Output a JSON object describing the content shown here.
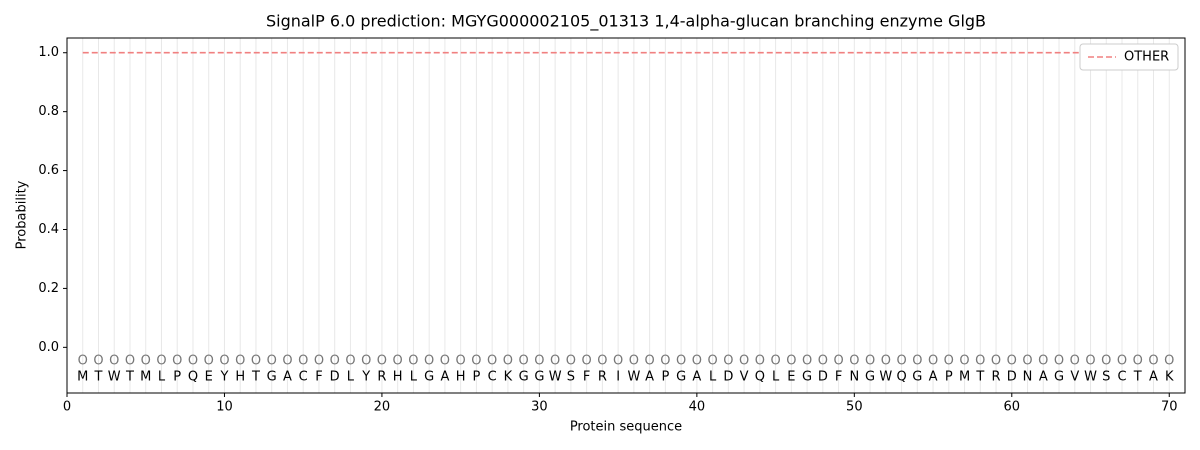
{
  "chart_data": {
    "type": "line",
    "title": "SignalP 6.0 prediction: MGYG000002105_01313 1,4-alpha-glucan branching enzyme GlgB",
    "xlabel": "Protein sequence",
    "ylabel": "Probability",
    "x": [
      1,
      2,
      3,
      4,
      5,
      6,
      7,
      8,
      9,
      10,
      11,
      12,
      13,
      14,
      15,
      16,
      17,
      18,
      19,
      20,
      21,
      22,
      23,
      24,
      25,
      26,
      27,
      28,
      29,
      30,
      31,
      32,
      33,
      34,
      35,
      36,
      37,
      38,
      39,
      40,
      41,
      42,
      43,
      44,
      45,
      46,
      47,
      48,
      49,
      50,
      51,
      52,
      53,
      54,
      55,
      56,
      57,
      58,
      59,
      60,
      61,
      62,
      63,
      64,
      65,
      66,
      67,
      68,
      69,
      70
    ],
    "sequence": [
      "M",
      "T",
      "W",
      "T",
      "M",
      "L",
      "P",
      "Q",
      "E",
      "Y",
      "H",
      "T",
      "G",
      "A",
      "C",
      "F",
      "D",
      "L",
      "Y",
      "R",
      "H",
      "L",
      "G",
      "A",
      "H",
      "P",
      "C",
      "K",
      "G",
      "G",
      "W",
      "S",
      "F",
      "R",
      "I",
      "W",
      "A",
      "P",
      "G",
      "A",
      "L",
      "D",
      "V",
      "Q",
      "L",
      "E",
      "G",
      "D",
      "F",
      "N",
      "G",
      "W",
      "Q",
      "G",
      "A",
      "P",
      "M",
      "T",
      "R",
      "D",
      "N",
      "A",
      "G",
      "V",
      "W",
      "S",
      "C",
      "T",
      "A",
      "K"
    ],
    "labels": [
      "O",
      "O",
      "O",
      "O",
      "O",
      "O",
      "O",
      "O",
      "O",
      "O",
      "O",
      "O",
      "O",
      "O",
      "O",
      "O",
      "O",
      "O",
      "O",
      "O",
      "O",
      "O",
      "O",
      "O",
      "O",
      "O",
      "O",
      "O",
      "O",
      "O",
      "O",
      "O",
      "O",
      "O",
      "O",
      "O",
      "O",
      "O",
      "O",
      "O",
      "O",
      "O",
      "O",
      "O",
      "O",
      "O",
      "O",
      "O",
      "O",
      "O",
      "O",
      "O",
      "O",
      "O",
      "O",
      "O",
      "O",
      "O",
      "O",
      "O",
      "O",
      "O",
      "O",
      "O",
      "O",
      "O",
      "O",
      "O",
      "O",
      "O"
    ],
    "series": [
      {
        "name": "OTHER",
        "color": "#f08080",
        "values": [
          1,
          1,
          1,
          1,
          1,
          1,
          1,
          1,
          1,
          1,
          1,
          1,
          1,
          1,
          1,
          1,
          1,
          1,
          1,
          1,
          1,
          1,
          1,
          1,
          1,
          1,
          1,
          1,
          1,
          1,
          1,
          1,
          1,
          1,
          1,
          1,
          1,
          1,
          1,
          1,
          1,
          1,
          1,
          1,
          1,
          1,
          1,
          1,
          1,
          1,
          1,
          1,
          1,
          1,
          1,
          1,
          1,
          1,
          1,
          1,
          1,
          1,
          1,
          1,
          1,
          1,
          1,
          1,
          1,
          1
        ]
      }
    ],
    "xlim": [
      0,
      71
    ],
    "ylim": [
      -0.155,
      1.05
    ],
    "xticks": [
      0,
      10,
      20,
      30,
      40,
      50,
      60,
      70
    ],
    "yticks": [
      {
        "value": 0,
        "label": "0.0"
      },
      {
        "value": 0.2,
        "label": "0.2"
      },
      {
        "value": 0.4,
        "label": "0.4"
      },
      {
        "value": 0.6,
        "label": "0.6"
      },
      {
        "value": 0.8,
        "label": "0.8"
      },
      {
        "value": 1,
        "label": "1.0"
      }
    ],
    "legend": "upper right"
  }
}
